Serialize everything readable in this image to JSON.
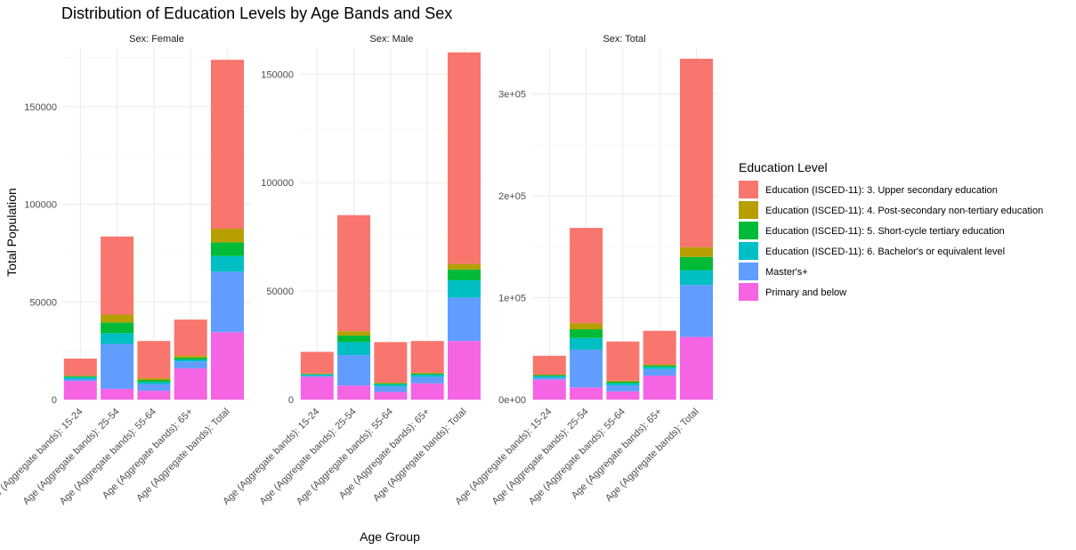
{
  "chart_data": {
    "type": "bar",
    "stacked": true,
    "title": "Distribution of Education Levels by Age Bands and Sex",
    "xlabel": "Age Group",
    "ylabel": "Total Population",
    "categories": [
      "Age (Aggregate bands): 15-24",
      "Age (Aggregate bands): 25-54",
      "Age (Aggregate bands): 55-64",
      "Age (Aggregate bands): 65+",
      "Age (Aggregate bands): Total"
    ],
    "legend": {
      "title": "Education Level",
      "position": "right",
      "order": [
        "Education (ISCED-11): 3. Upper secondary education",
        "Education (ISCED-11): 4. Post-secondary non-tertiary education",
        "Education (ISCED-11): 5. Short-cycle tertiary education",
        "Education (ISCED-11): 6. Bachelor's or equivalent level",
        "Master's+",
        "Primary and below"
      ]
    },
    "colors": {
      "Education (ISCED-11): 3. Upper secondary education": "#F8766D",
      "Education (ISCED-11): 4. Post-secondary non-tertiary education": "#B79F00",
      "Education (ISCED-11): 5. Short-cycle tertiary education": "#00BA38",
      "Education (ISCED-11): 6. Bachelor's or equivalent level": "#00BFC4",
      "Master's+": "#619CFF",
      "Primary and below": "#F564E3"
    },
    "grid": true,
    "facets": [
      {
        "strip": "Sex: Female",
        "ylim": [
          0,
          180000
        ],
        "yticks": [
          0,
          50000,
          100000,
          150000
        ],
        "ytick_labels": [
          "0",
          "50000",
          "100000",
          "150000"
        ],
        "series": [
          {
            "name": "Primary and below",
            "values": [
              9500,
              5500,
              4500,
              16000,
              34500
            ]
          },
          {
            "name": "Master's+",
            "values": [
              1000,
              23000,
              3500,
              3500,
              31000
            ]
          },
          {
            "name": "Education (ISCED-11): 6. Bachelor's or equivalent level",
            "values": [
              1000,
              5500,
              1000,
              1000,
              8000
            ]
          },
          {
            "name": "Education (ISCED-11): 5. Short-cycle tertiary education",
            "values": [
              500,
              5500,
              1000,
              1000,
              7000
            ]
          },
          {
            "name": "Education (ISCED-11): 4. Post-secondary non-tertiary education",
            "values": [
              300,
              4000,
              1000,
              1000,
              7000
            ]
          },
          {
            "name": "Education (ISCED-11): 3. Upper secondary education",
            "values": [
              8700,
              40000,
              19000,
              18500,
              86500
            ]
          }
        ]
      },
      {
        "strip": "Sex: Male",
        "ylim": [
          0,
          162000
        ],
        "yticks": [
          0,
          50000,
          100000,
          150000
        ],
        "ytick_labels": [
          "0",
          "50000",
          "100000",
          "150000"
        ],
        "series": [
          {
            "name": "Primary and below",
            "values": [
              10500,
              6500,
              3500,
              7500,
              27000
            ]
          },
          {
            "name": "Master's+",
            "values": [
              500,
              14000,
              2500,
              3000,
              20000
            ]
          },
          {
            "name": "Education (ISCED-11): 6. Bachelor's or equivalent level",
            "values": [
              500,
              6000,
              1000,
              1000,
              8000
            ]
          },
          {
            "name": "Education (ISCED-11): 5. Short-cycle tertiary education",
            "values": [
              300,
              3000,
              500,
              500,
              5000
            ]
          },
          {
            "name": "Education (ISCED-11): 4. Post-secondary non-tertiary education",
            "values": [
              200,
              2000,
              300,
              300,
              2500
            ]
          },
          {
            "name": "Education (ISCED-11): 3. Upper secondary education",
            "values": [
              10000,
              53500,
              18700,
              14700,
              97500
            ]
          }
        ]
      },
      {
        "strip": "Sex: Total",
        "ylim": [
          0,
          345000
        ],
        "yticks": [
          0,
          100000,
          200000,
          300000
        ],
        "ytick_labels": [
          "0e+00",
          "1e+05",
          "2e+05",
          "3e+05"
        ],
        "series": [
          {
            "name": "Primary and below",
            "values": [
              19500,
              12000,
              8000,
              23500,
              61500
            ]
          },
          {
            "name": "Master's+",
            "values": [
              2000,
              37000,
              6000,
              6500,
              51000
            ]
          },
          {
            "name": "Education (ISCED-11): 6. Bachelor's or equivalent level",
            "values": [
              1500,
              11500,
              2000,
              2000,
              14500
            ]
          },
          {
            "name": "Education (ISCED-11): 5. Short-cycle tertiary education",
            "values": [
              1000,
              8500,
              1500,
              1500,
              13000
            ]
          },
          {
            "name": "Education (ISCED-11): 4. Post-secondary non-tertiary education",
            "values": [
              500,
              6000,
              1000,
              1000,
              9500
            ]
          },
          {
            "name": "Education (ISCED-11): 3. Upper secondary education",
            "values": [
              18500,
              93500,
              38500,
              33000,
              185000
            ]
          }
        ]
      }
    ]
  }
}
